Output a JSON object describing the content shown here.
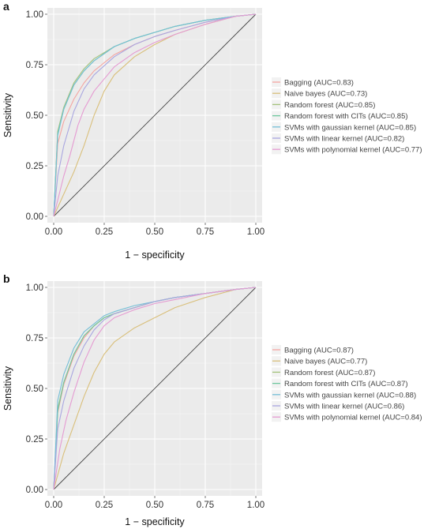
{
  "chart_data": [
    {
      "panel_label": "a",
      "type": "line",
      "xlabel": "1 − specificity",
      "ylabel": "Sensitivity",
      "xlim": [
        0,
        1
      ],
      "ylim": [
        0,
        1
      ],
      "x_ticks": [
        "0.00",
        "0.25",
        "0.50",
        "0.75",
        "1.00"
      ],
      "y_ticks": [
        "0.00",
        "0.25",
        "0.50",
        "0.75",
        "1.00"
      ],
      "grid": true,
      "legend_position": "right",
      "reference_line": [
        [
          0,
          0
        ],
        [
          1,
          1
        ]
      ],
      "series": [
        {
          "name": "Bagging (AUC=0.83)",
          "color": "#f4a4a0",
          "points": [
            [
              0,
              0
            ],
            [
              0.02,
              0.36
            ],
            [
              0.05,
              0.47
            ],
            [
              0.1,
              0.58
            ],
            [
              0.15,
              0.66
            ],
            [
              0.2,
              0.72
            ],
            [
              0.3,
              0.8
            ],
            [
              0.4,
              0.85
            ],
            [
              0.5,
              0.89
            ],
            [
              0.6,
              0.92
            ],
            [
              0.75,
              0.96
            ],
            [
              0.9,
              0.99
            ],
            [
              1,
              1
            ]
          ]
        },
        {
          "name": "Naive bayes (AUC=0.73)",
          "color": "#d9bf7a",
          "points": [
            [
              0,
              0
            ],
            [
              0.05,
              0.11
            ],
            [
              0.1,
              0.22
            ],
            [
              0.15,
              0.35
            ],
            [
              0.2,
              0.5
            ],
            [
              0.25,
              0.62
            ],
            [
              0.3,
              0.7
            ],
            [
              0.4,
              0.79
            ],
            [
              0.5,
              0.85
            ],
            [
              0.6,
              0.9
            ],
            [
              0.75,
              0.95
            ],
            [
              0.9,
              0.99
            ],
            [
              1,
              1
            ]
          ]
        },
        {
          "name": "Random forest (AUC=0.85)",
          "color": "#a4c27c",
          "points": [
            [
              0,
              0
            ],
            [
              0.02,
              0.42
            ],
            [
              0.05,
              0.54
            ],
            [
              0.1,
              0.66
            ],
            [
              0.15,
              0.73
            ],
            [
              0.2,
              0.78
            ],
            [
              0.3,
              0.84
            ],
            [
              0.4,
              0.88
            ],
            [
              0.5,
              0.91
            ],
            [
              0.6,
              0.94
            ],
            [
              0.75,
              0.97
            ],
            [
              0.9,
              0.99
            ],
            [
              1,
              1
            ]
          ]
        },
        {
          "name": "Random forest with CITs (AUC=0.85)",
          "color": "#6ec79e",
          "points": [
            [
              0,
              0
            ],
            [
              0.02,
              0.41
            ],
            [
              0.05,
              0.53
            ],
            [
              0.1,
              0.65
            ],
            [
              0.15,
              0.72
            ],
            [
              0.2,
              0.77
            ],
            [
              0.3,
              0.84
            ],
            [
              0.4,
              0.88
            ],
            [
              0.5,
              0.91
            ],
            [
              0.6,
              0.94
            ],
            [
              0.75,
              0.97
            ],
            [
              0.9,
              0.99
            ],
            [
              1,
              1
            ]
          ]
        },
        {
          "name": "SVMs with gaussian kernel (AUC=0.85)",
          "color": "#74bfd6",
          "points": [
            [
              0,
              0
            ],
            [
              0.02,
              0.4
            ],
            [
              0.05,
              0.53
            ],
            [
              0.1,
              0.65
            ],
            [
              0.15,
              0.72
            ],
            [
              0.2,
              0.77
            ],
            [
              0.3,
              0.84
            ],
            [
              0.4,
              0.88
            ],
            [
              0.5,
              0.91
            ],
            [
              0.6,
              0.94
            ],
            [
              0.75,
              0.97
            ],
            [
              0.9,
              0.99
            ],
            [
              1,
              1
            ]
          ]
        },
        {
          "name": "SVMs with linear kernel (AUC=0.82)",
          "color": "#a9a6e0",
          "points": [
            [
              0,
              0
            ],
            [
              0.02,
              0.2
            ],
            [
              0.05,
              0.35
            ],
            [
              0.1,
              0.52
            ],
            [
              0.15,
              0.63
            ],
            [
              0.2,
              0.7
            ],
            [
              0.3,
              0.79
            ],
            [
              0.4,
              0.85
            ],
            [
              0.5,
              0.89
            ],
            [
              0.6,
              0.92
            ],
            [
              0.75,
              0.96
            ],
            [
              0.9,
              0.99
            ],
            [
              1,
              1
            ]
          ]
        },
        {
          "name": "SVMs with polynomial kernel (AUC=0.77)",
          "color": "#e59bd2",
          "points": [
            [
              0,
              0
            ],
            [
              0.05,
              0.2
            ],
            [
              0.08,
              0.3
            ],
            [
              0.12,
              0.45
            ],
            [
              0.15,
              0.53
            ],
            [
              0.2,
              0.62
            ],
            [
              0.3,
              0.74
            ],
            [
              0.4,
              0.81
            ],
            [
              0.5,
              0.86
            ],
            [
              0.6,
              0.9
            ],
            [
              0.75,
              0.95
            ],
            [
              0.9,
              0.99
            ],
            [
              1,
              1
            ]
          ]
        }
      ]
    },
    {
      "panel_label": "b",
      "type": "line",
      "xlabel": "1 − specificity",
      "ylabel": "Sensitivity",
      "xlim": [
        0,
        1
      ],
      "ylim": [
        0,
        1
      ],
      "x_ticks": [
        "0.00",
        "0.25",
        "0.50",
        "0.75",
        "1.00"
      ],
      "y_ticks": [
        "0.00",
        "0.25",
        "0.50",
        "0.75",
        "1.00"
      ],
      "grid": true,
      "legend_position": "right",
      "reference_line": [
        [
          0,
          0
        ],
        [
          1,
          1
        ]
      ],
      "series": [
        {
          "name": "Bagging (AUC=0.87)",
          "color": "#f4a4a0",
          "points": [
            [
              0,
              0
            ],
            [
              0.02,
              0.38
            ],
            [
              0.05,
              0.52
            ],
            [
              0.1,
              0.66
            ],
            [
              0.15,
              0.75
            ],
            [
              0.2,
              0.81
            ],
            [
              0.25,
              0.85
            ],
            [
              0.3,
              0.87
            ],
            [
              0.4,
              0.9
            ],
            [
              0.5,
              0.93
            ],
            [
              0.6,
              0.95
            ],
            [
              0.75,
              0.97
            ],
            [
              0.9,
              0.99
            ],
            [
              1,
              1
            ]
          ]
        },
        {
          "name": "Naive bayes (AUC=0.77)",
          "color": "#d9bf7a",
          "points": [
            [
              0,
              0
            ],
            [
              0.05,
              0.18
            ],
            [
              0.1,
              0.32
            ],
            [
              0.15,
              0.46
            ],
            [
              0.2,
              0.58
            ],
            [
              0.25,
              0.67
            ],
            [
              0.3,
              0.73
            ],
            [
              0.4,
              0.8
            ],
            [
              0.5,
              0.85
            ],
            [
              0.6,
              0.9
            ],
            [
              0.75,
              0.95
            ],
            [
              0.9,
              0.99
            ],
            [
              1,
              1
            ]
          ]
        },
        {
          "name": "Random forest (AUC=0.87)",
          "color": "#a4c27c",
          "points": [
            [
              0,
              0
            ],
            [
              0.02,
              0.4
            ],
            [
              0.05,
              0.53
            ],
            [
              0.1,
              0.67
            ],
            [
              0.15,
              0.76
            ],
            [
              0.2,
              0.81
            ],
            [
              0.25,
              0.85
            ],
            [
              0.3,
              0.87
            ],
            [
              0.4,
              0.9
            ],
            [
              0.5,
              0.93
            ],
            [
              0.6,
              0.95
            ],
            [
              0.75,
              0.97
            ],
            [
              0.9,
              0.99
            ],
            [
              1,
              1
            ]
          ]
        },
        {
          "name": "Random forest with CITs (AUC=0.87)",
          "color": "#6ec79e",
          "points": [
            [
              0,
              0
            ],
            [
              0.02,
              0.39
            ],
            [
              0.05,
              0.53
            ],
            [
              0.1,
              0.67
            ],
            [
              0.15,
              0.76
            ],
            [
              0.2,
              0.81
            ],
            [
              0.25,
              0.85
            ],
            [
              0.3,
              0.87
            ],
            [
              0.4,
              0.9
            ],
            [
              0.5,
              0.93
            ],
            [
              0.6,
              0.95
            ],
            [
              0.75,
              0.97
            ],
            [
              0.9,
              0.99
            ],
            [
              1,
              1
            ]
          ]
        },
        {
          "name": "SVMs with gaussian kernel (AUC=0.88)",
          "color": "#74bfd6",
          "points": [
            [
              0,
              0
            ],
            [
              0.02,
              0.44
            ],
            [
              0.05,
              0.57
            ],
            [
              0.1,
              0.7
            ],
            [
              0.15,
              0.78
            ],
            [
              0.2,
              0.82
            ],
            [
              0.25,
              0.86
            ],
            [
              0.3,
              0.88
            ],
            [
              0.4,
              0.91
            ],
            [
              0.5,
              0.93
            ],
            [
              0.6,
              0.95
            ],
            [
              0.75,
              0.97
            ],
            [
              0.9,
              0.99
            ],
            [
              1,
              1
            ]
          ]
        },
        {
          "name": "SVMs with linear kernel (AUC=0.86)",
          "color": "#a9a6e0",
          "points": [
            [
              0,
              0
            ],
            [
              0.02,
              0.3
            ],
            [
              0.05,
              0.44
            ],
            [
              0.1,
              0.6
            ],
            [
              0.15,
              0.71
            ],
            [
              0.2,
              0.79
            ],
            [
              0.25,
              0.84
            ],
            [
              0.3,
              0.87
            ],
            [
              0.4,
              0.9
            ],
            [
              0.5,
              0.93
            ],
            [
              0.6,
              0.95
            ],
            [
              0.75,
              0.97
            ],
            [
              0.9,
              0.99
            ],
            [
              1,
              1
            ]
          ]
        },
        {
          "name": "SVMs with polynomial kernel (AUC=0.84)",
          "color": "#e59bd2",
          "points": [
            [
              0,
              0
            ],
            [
              0.03,
              0.2
            ],
            [
              0.06,
              0.34
            ],
            [
              0.1,
              0.48
            ],
            [
              0.15,
              0.63
            ],
            [
              0.2,
              0.74
            ],
            [
              0.25,
              0.81
            ],
            [
              0.3,
              0.85
            ],
            [
              0.4,
              0.89
            ],
            [
              0.5,
              0.92
            ],
            [
              0.6,
              0.94
            ],
            [
              0.75,
              0.97
            ],
            [
              0.9,
              0.99
            ],
            [
              1,
              1
            ]
          ]
        }
      ]
    }
  ]
}
